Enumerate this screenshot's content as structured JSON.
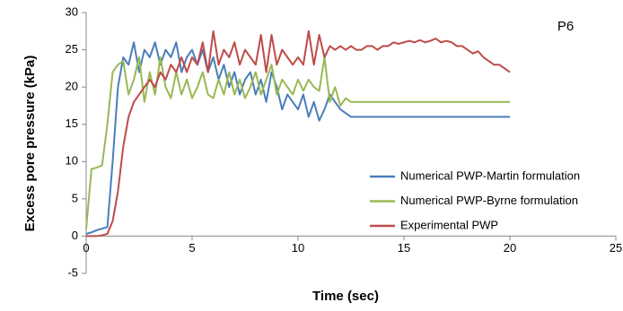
{
  "chart_data": {
    "type": "line",
    "annotation": "P6",
    "xlabel": "Time (sec)",
    "ylabel": "Excess pore pressure (kPa)",
    "x": [
      0,
      0.25,
      0.5,
      0.75,
      1,
      1.25,
      1.5,
      1.75,
      2,
      2.25,
      2.5,
      2.75,
      3,
      3.25,
      3.5,
      3.75,
      4,
      4.25,
      4.5,
      4.75,
      5,
      5.25,
      5.5,
      5.75,
      6,
      6.25,
      6.5,
      6.75,
      7,
      7.25,
      7.5,
      7.75,
      8,
      8.25,
      8.5,
      8.75,
      9,
      9.25,
      9.5,
      9.75,
      10,
      10.25,
      10.5,
      10.75,
      11,
      11.25,
      11.5,
      11.75,
      12,
      12.25,
      12.5,
      12.75,
      13,
      13.25,
      13.5,
      13.75,
      14,
      14.25,
      14.5,
      14.75,
      15,
      15.25,
      15.5,
      15.75,
      16,
      16.25,
      16.5,
      16.75,
      17,
      17.25,
      17.5,
      17.75,
      18,
      18.25,
      18.5,
      18.75,
      19,
      19.25,
      19.5,
      19.75,
      20
    ],
    "series": [
      {
        "name": "Numerical PWP-Martin formulation",
        "color": "#4a7ebb",
        "values": [
          0.3,
          0.5,
          0.8,
          1.0,
          1.2,
          10,
          20,
          24,
          23,
          26,
          22,
          25,
          24,
          26,
          23,
          25,
          24,
          26,
          22,
          24,
          25,
          23,
          25,
          22,
          24,
          21,
          23,
          20,
          22,
          19,
          21,
          22,
          19,
          21,
          18,
          22,
          20,
          17,
          19,
          18,
          17,
          19,
          16,
          18,
          15.5,
          17,
          19,
          18,
          17,
          16.5,
          16,
          16,
          16,
          16,
          16,
          16,
          16,
          16,
          16,
          16,
          16,
          16,
          16,
          16,
          16,
          16,
          16,
          16,
          16,
          16,
          16,
          16,
          16,
          16,
          16,
          16,
          16,
          16,
          16,
          16,
          16
        ]
      },
      {
        "name": "Numerical PWP-Byrne formulation",
        "color": "#98b954",
        "values": [
          1,
          9,
          9.2,
          9.5,
          15,
          22,
          23,
          23.5,
          19,
          21,
          24,
          18,
          22,
          19,
          24,
          20,
          18.5,
          22,
          19,
          21,
          18.5,
          20,
          22,
          19,
          18.5,
          21,
          19,
          22,
          19,
          21,
          18.5,
          20,
          22,
          19,
          21,
          23,
          19,
          21,
          20,
          19,
          21,
          19.5,
          21,
          20,
          19.5,
          24,
          18,
          20,
          17.5,
          18.5,
          18,
          18,
          18,
          18,
          18,
          18,
          18,
          18,
          18,
          18,
          18,
          18,
          18,
          18,
          18,
          18,
          18,
          18,
          18,
          18,
          18,
          18,
          18,
          18,
          18,
          18,
          18,
          18,
          18,
          18,
          18
        ]
      },
      {
        "name": "Experimental PWP",
        "color": "#be4b48",
        "values": [
          0,
          0,
          0,
          0.1,
          0.3,
          2,
          6,
          12,
          16,
          18,
          19,
          20,
          21,
          20,
          22,
          21,
          23,
          22,
          24,
          22,
          24,
          23,
          26,
          22,
          27.5,
          23,
          25,
          24,
          26,
          23,
          25,
          24,
          23,
          27,
          22,
          27,
          23,
          25,
          24,
          23,
          24,
          23,
          27.5,
          23,
          27,
          24,
          25.5,
          25,
          25.5,
          25,
          25.5,
          25,
          25,
          25.5,
          25.5,
          25,
          25.5,
          25.5,
          26,
          25.8,
          26,
          26.2,
          26,
          26.3,
          26,
          26.2,
          26.5,
          26,
          26.2,
          26,
          25.5,
          25.5,
          25,
          24.5,
          24.8,
          24,
          23.5,
          23,
          23,
          22.5,
          22
        ]
      }
    ],
    "xlim": [
      0,
      25
    ],
    "xticks": [
      0,
      5,
      10,
      15,
      20,
      25
    ],
    "ylim": [
      -5,
      30
    ],
    "yticks": [
      -5,
      0,
      5,
      10,
      15,
      20,
      25,
      30
    ],
    "grid": false
  }
}
